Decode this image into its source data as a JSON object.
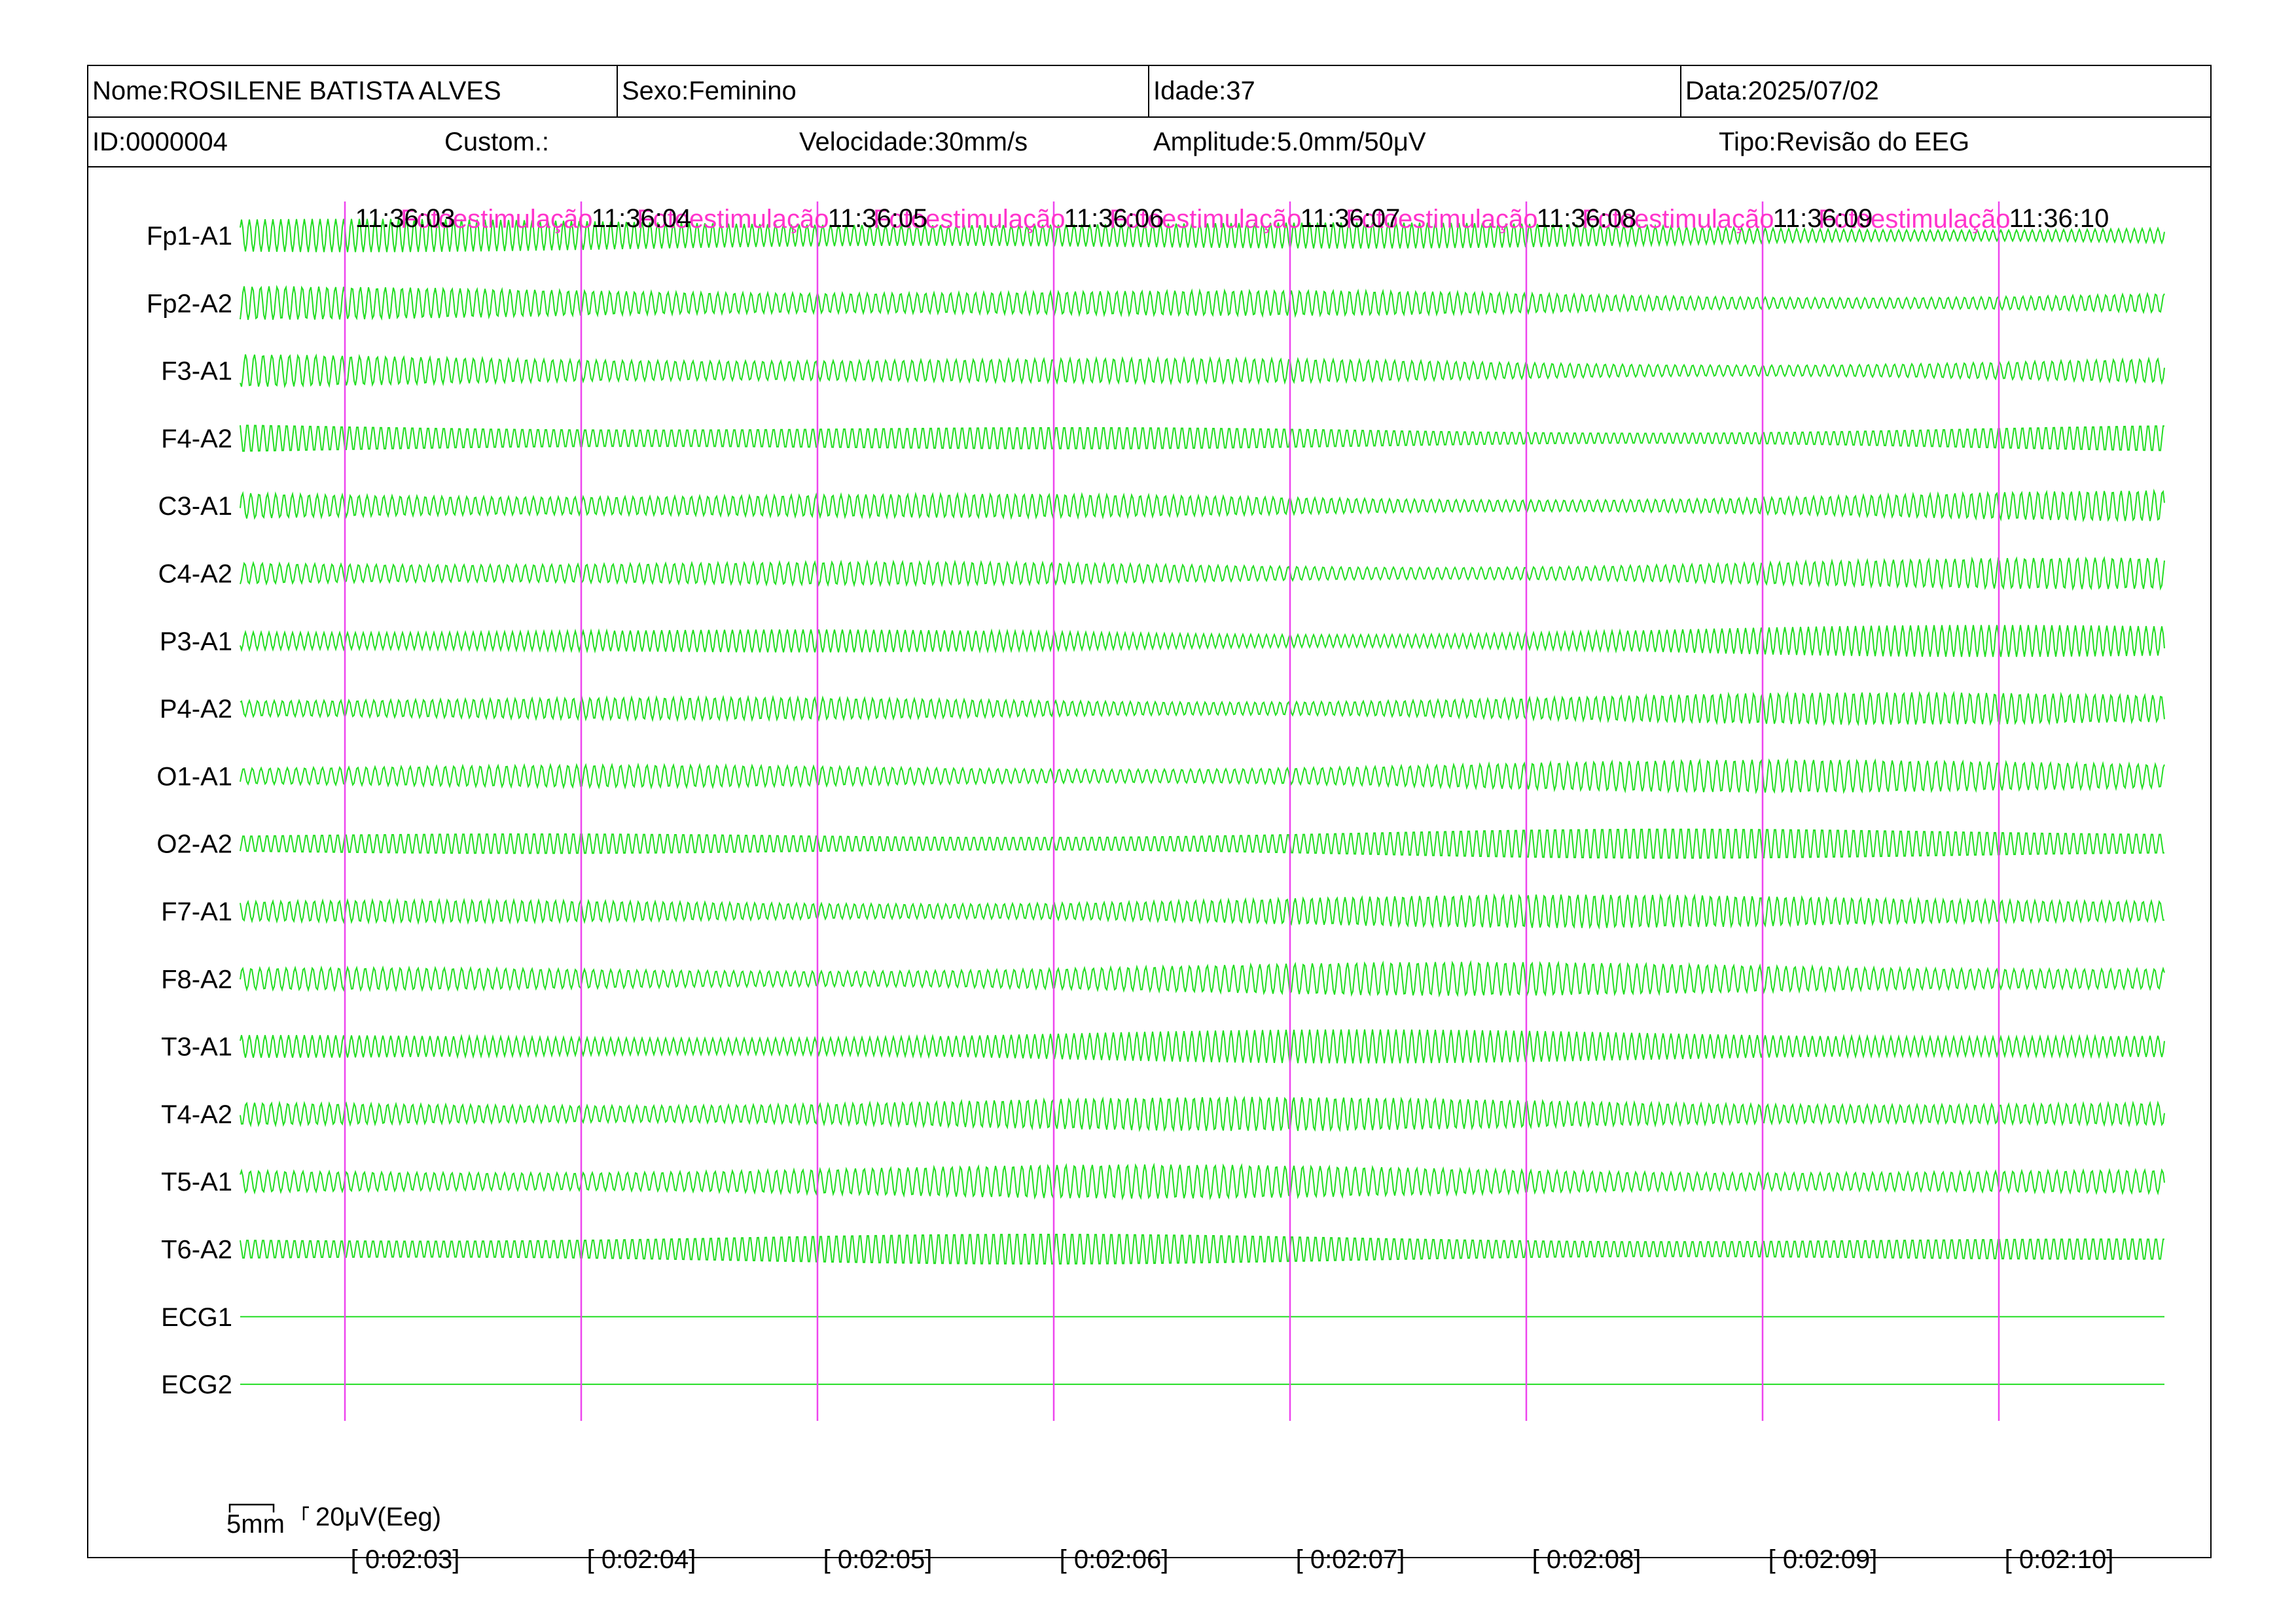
{
  "header": {
    "nome": "Nome:ROSILENE BATISTA ALVES",
    "sexo": "Sexo:Feminino",
    "idade": "Idade:37",
    "data": "Data:2025/07/02",
    "id": "ID:0000004",
    "custom": "Custom.:",
    "velocidade": "Velocidade:30mm/s",
    "amplitude": "Amplitude:5.0mm/50μV",
    "tipo": "Tipo:Revisão do EEG"
  },
  "scale": {
    "time_label": "5mm",
    "amp_label": "20μV(Eeg)"
  },
  "colors": {
    "trace": "#22dd22",
    "marker": "#ee44ee",
    "annotation": "#ff33cc"
  },
  "chart_data": {
    "type": "line",
    "title": "",
    "channels": [
      "Fp1-A1",
      "Fp2-A2",
      "F3-A1",
      "F4-A2",
      "C3-A1",
      "C4-A2",
      "P3-A1",
      "P4-A2",
      "O1-A1",
      "O2-A2",
      "F7-A1",
      "F8-A2",
      "T3-A1",
      "T4-A2",
      "T5-A1",
      "T6-A2",
      "ECG1",
      "ECG2"
    ],
    "time_ticks": [
      "11:36:03",
      "11:36:04",
      "11:36:05",
      "11:36:06",
      "11:36:07",
      "11:36:08",
      "11:36:09",
      "11:36:10"
    ],
    "elapsed_ticks": [
      "[ 0:02:03]",
      "[ 0:02:04]",
      "[ 0:02:05]",
      "[ 0:02:06]",
      "[ 0:02:07]",
      "[ 0:02:08]",
      "[ 0:02:09]",
      "[ 0:02:10]"
    ],
    "annotations": [
      "Fotoestimulação",
      "Fotoestimulação",
      "Fotoestimulação",
      "Fotoestimulação",
      "Fotoestimulação",
      "Fotoestimulação",
      "Fotoestimulação"
    ],
    "grid": false
  }
}
